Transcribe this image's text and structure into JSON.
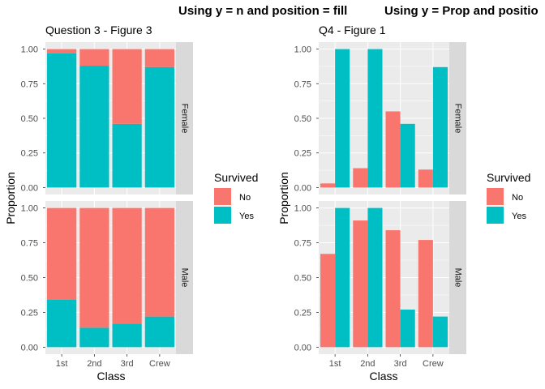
{
  "colors": {
    "No": "#F8766D",
    "Yes": "#00BFC4",
    "panel": "#EBEBEB",
    "strip": "#D9D9D9"
  },
  "chart_data": [
    {
      "type": "bar",
      "suptitle": "Using y = n and position = fill",
      "title": "Question 3 - Figure 3",
      "xlabel": "Class",
      "ylabel": "Proportion",
      "ylim": [
        0,
        1
      ],
      "yticks": [
        "0.00",
        "0.25",
        "0.50",
        "0.75",
        "1.00"
      ],
      "categories": [
        "1st",
        "2nd",
        "3rd",
        "Crew"
      ],
      "facets": [
        "Female",
        "Male"
      ],
      "mode": "stacked",
      "legend": {
        "title": "Survived",
        "entries": [
          "No",
          "Yes"
        ],
        "placement": "right"
      },
      "series": [
        {
          "name": "No",
          "values": {
            "Female": [
              0.03,
              0.12,
              0.54,
              0.13
            ],
            "Male": [
              0.66,
              0.86,
              0.83,
              0.78
            ]
          }
        },
        {
          "name": "Yes",
          "values": {
            "Female": [
              0.97,
              0.88,
              0.46,
              0.87
            ],
            "Male": [
              0.34,
              0.14,
              0.17,
              0.22
            ]
          }
        }
      ]
    },
    {
      "type": "bar",
      "suptitle": "Using y = Prop and positio",
      "title": "Q4 - Figure 1",
      "xlabel": "Class",
      "ylabel": "Proportion",
      "ylim": [
        0,
        1
      ],
      "yticks": [
        "0.00",
        "0.25",
        "0.50",
        "0.75",
        "1.00"
      ],
      "categories": [
        "1st",
        "2nd",
        "3rd",
        "Crew"
      ],
      "facets": [
        "Female",
        "Male"
      ],
      "mode": "dodge",
      "legend": {
        "title": "Survived",
        "entries": [
          "No",
          "Yes"
        ],
        "placement": "right"
      },
      "series": [
        {
          "name": "No",
          "values": {
            "Female": [
              0.03,
              0.14,
              0.55,
              0.13
            ],
            "Male": [
              0.67,
              0.91,
              0.84,
              0.77
            ]
          }
        },
        {
          "name": "Yes",
          "values": {
            "Female": [
              1.0,
              1.0,
              0.46,
              0.87
            ],
            "Male": [
              1.0,
              1.0,
              0.27,
              0.22
            ]
          }
        }
      ]
    }
  ]
}
